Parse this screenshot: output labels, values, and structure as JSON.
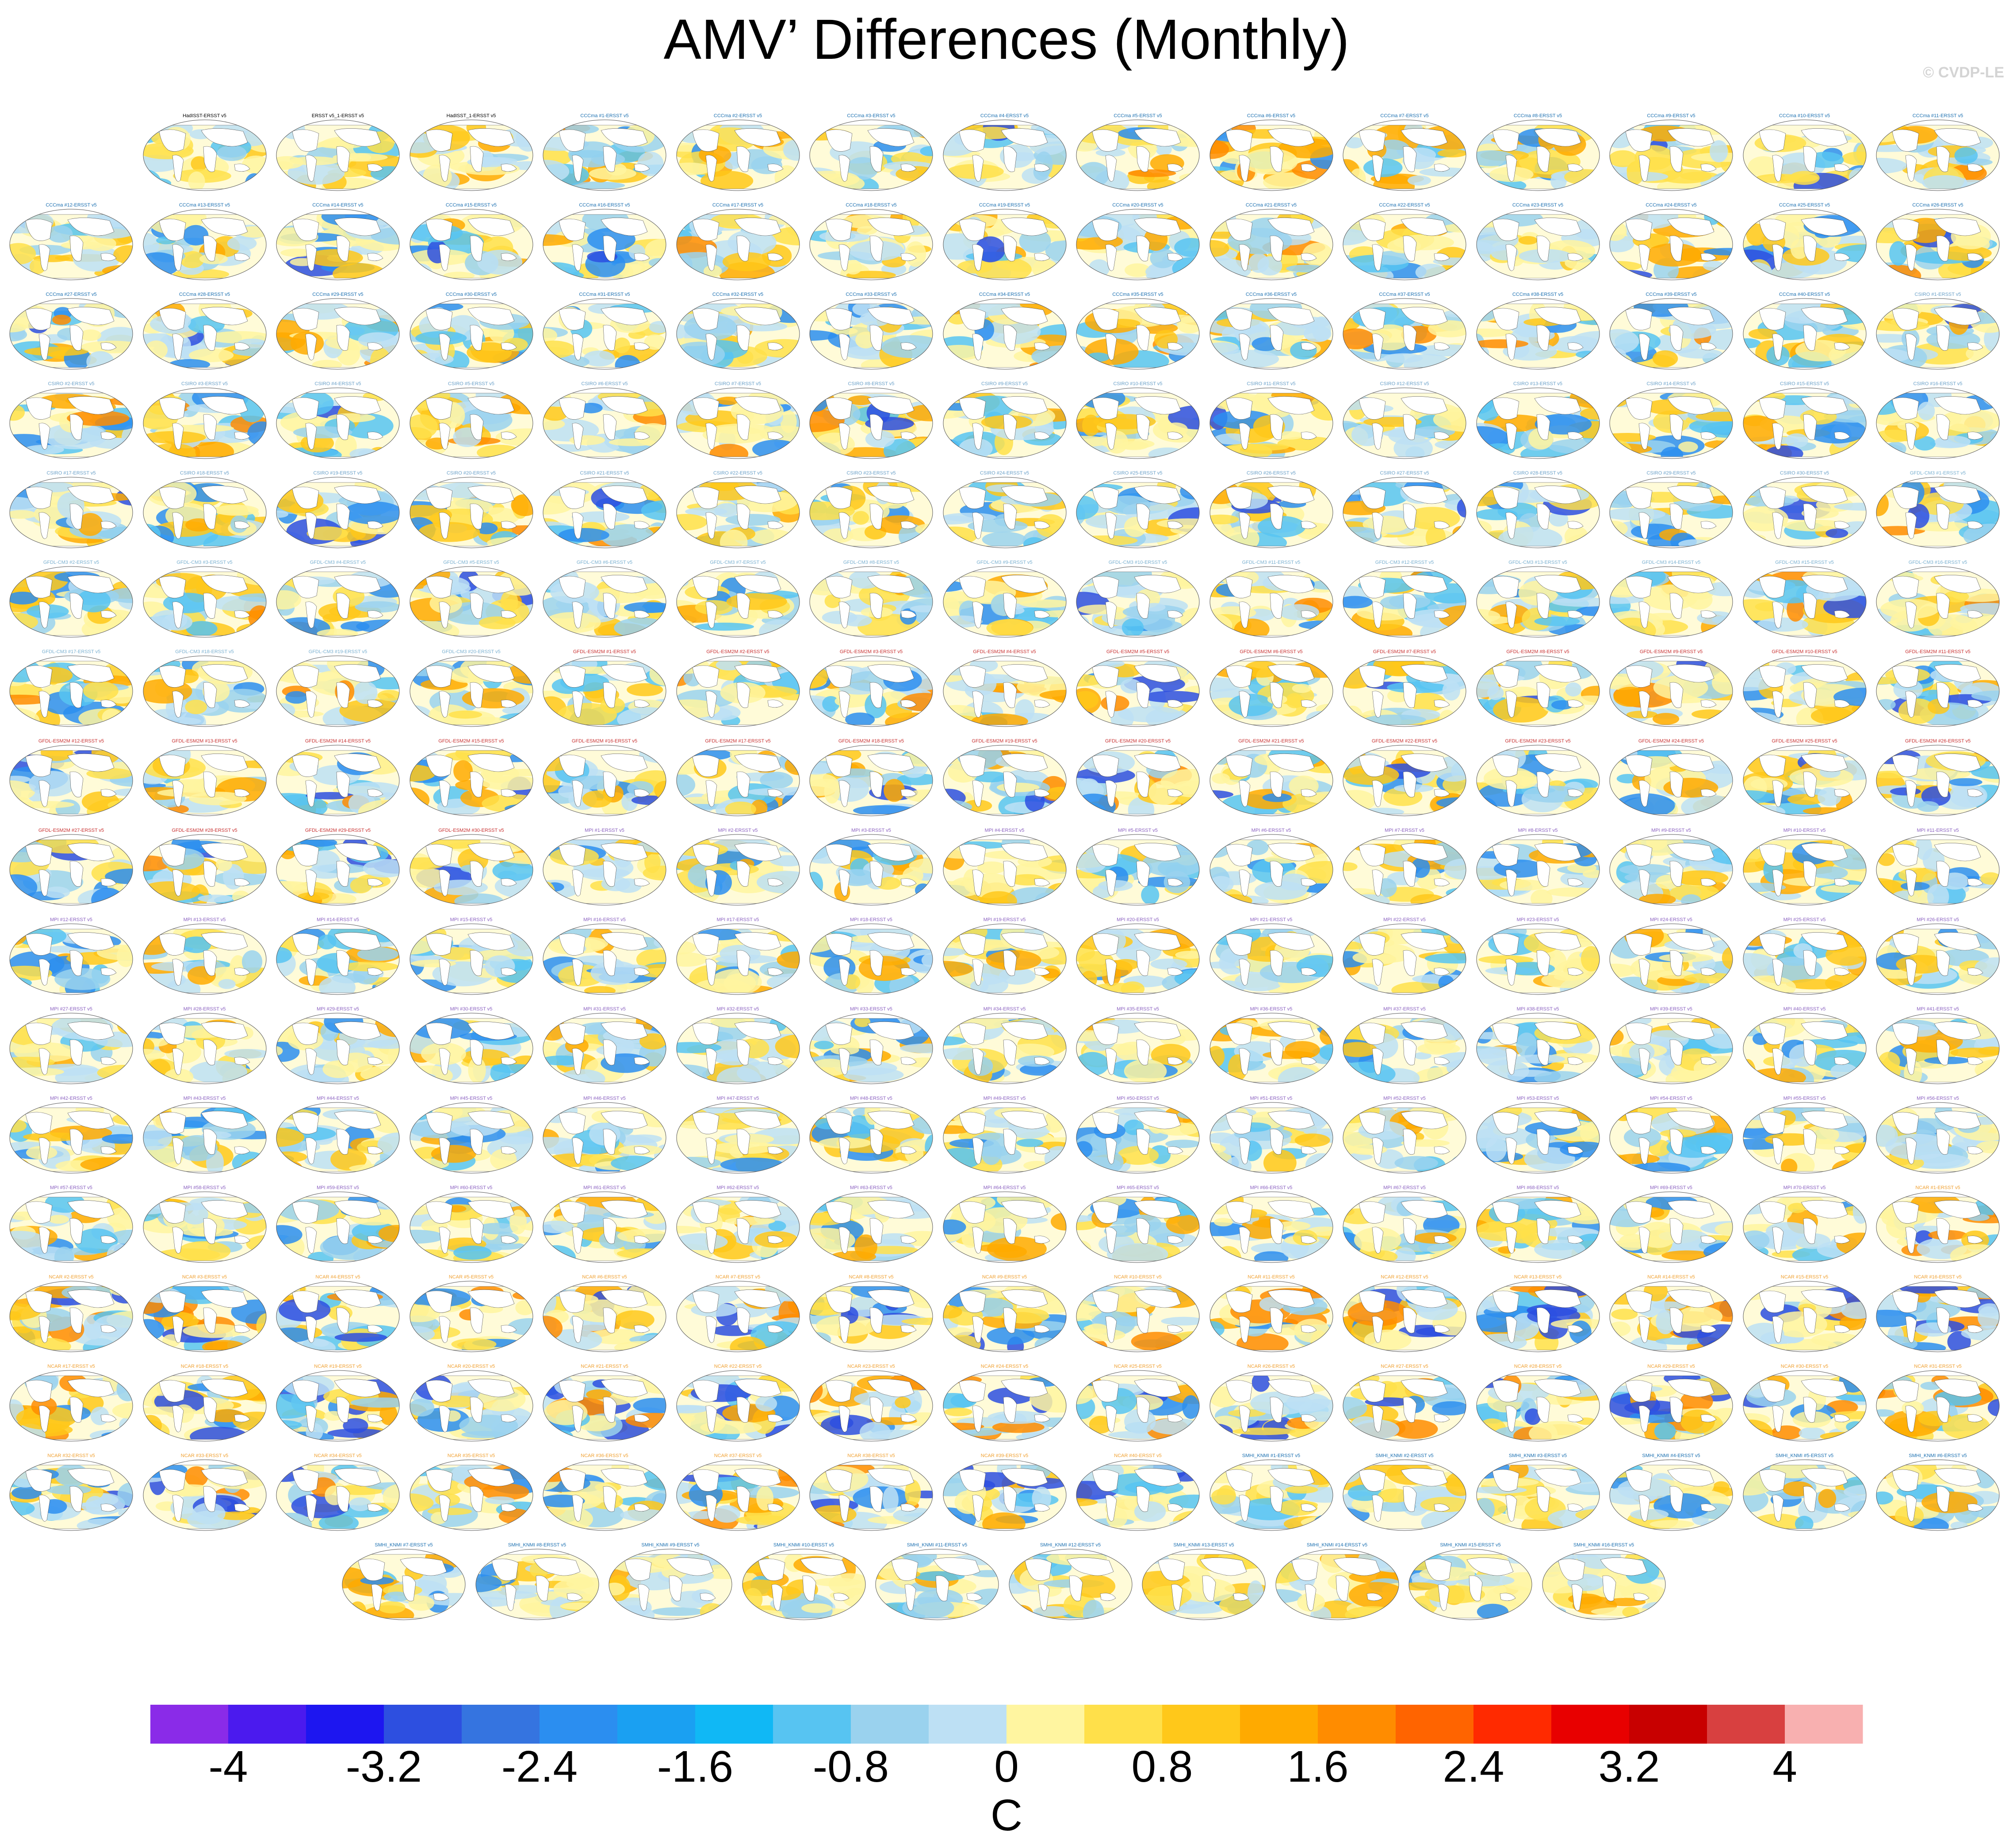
{
  "title": "AMV’ Differences (Monthly)",
  "watermark": "© CVDP-LE",
  "chart_data": {
    "type": "heatmap",
    "title": "AMV’ Differences (Monthly)",
    "colorbar": {
      "unit": "C",
      "ticks": [
        "-4",
        "-3.2",
        "-2.4",
        "-1.6",
        "-0.8",
        "0",
        "0.8",
        "1.6",
        "2.4",
        "3.2",
        "4"
      ],
      "colors": [
        "#8a2be8",
        "#4b1aee",
        "#1d16f0",
        "#2d4fe0",
        "#3574e0",
        "#2b8ef0",
        "#1aa0f2",
        "#10b8f5",
        "#57c4f2",
        "#9ad2ee",
        "#bde0f4",
        "#fff5a0",
        "#ffe04a",
        "#ffc81a",
        "#ffaa00",
        "#ff8c00",
        "#ff6400",
        "#ff2a00",
        "#e80000",
        "#c80000",
        "#d84040",
        "#f8b0b0"
      ]
    },
    "panel_groups": [
      {
        "name_format": "{label}",
        "labels": [
          "HadISST-ERSST v5",
          "ERSST v5_1-ERSST v5",
          "HadISST_1-ERSST v5"
        ],
        "title_color": "#000000",
        "intensity": 0.7
      },
      {
        "name_format": "CCCma #{n}-ERSST v5",
        "start": 1,
        "end": 40,
        "title_color": "#1a6fb0",
        "intensity": 0.85
      },
      {
        "name_format": "CSIRO #{n}-ERSST v5",
        "start": 1,
        "end": 30,
        "title_color": "#6aa0c8",
        "intensity": 0.85
      },
      {
        "name_format": "GFDL-CM3 #{n}-ERSST v5",
        "start": 1,
        "end": 20,
        "title_color": "#7ab0d0",
        "intensity": 0.85
      },
      {
        "name_format": "GFDL-ESM2M #{n}-ERSST v5",
        "start": 1,
        "end": 30,
        "title_color": "#c83030",
        "intensity": 0.9
      },
      {
        "name_format": "MPI #{n}-ERSST v5",
        "start": 1,
        "end": 70,
        "title_color": "#8a60c0",
        "intensity": 0.8
      },
      {
        "name_format": "NCAR #{n}-ERSST v5",
        "start": 1,
        "end": 40,
        "title_color": "#f0a030",
        "intensity": 1.15
      },
      {
        "name_format": "SMHI_KNMI #{n}-ERSST v5",
        "start": 1,
        "end": 16,
        "title_color": "#1a6fb0",
        "intensity": 0.8
      }
    ],
    "panel_count": 249
  }
}
